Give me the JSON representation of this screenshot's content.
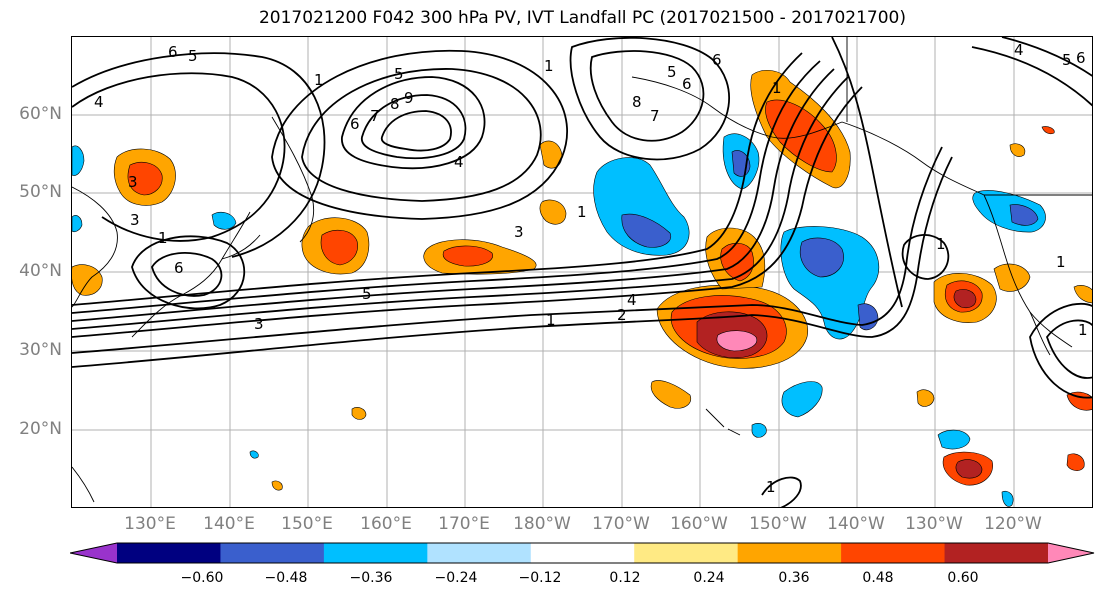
{
  "title": "2017021200 F042 300 hPa PV, IVT Landfall PC (2017021500 - 2017021700)",
  "lat_labels": [
    "60°N",
    "50°N",
    "40°N",
    "30°N",
    "20°N"
  ],
  "lon_labels": [
    "130°E",
    "140°E",
    "150°E",
    "160°E",
    "170°E",
    "180°W",
    "170°W",
    "160°W",
    "150°W",
    "140°W",
    "130°W",
    "120°W"
  ],
  "contour_labels": [
    "4",
    "6",
    "5",
    "1",
    "5",
    "6",
    "7",
    "8",
    "9",
    "4",
    "3",
    "1",
    "8",
    "7",
    "6",
    "6",
    "5",
    "3",
    "4",
    "2",
    "1",
    "3",
    "6",
    "3",
    "5",
    "1",
    "1",
    "1",
    "1",
    "1",
    "1",
    "1",
    "4",
    "5",
    "6"
  ],
  "colorbar": {
    "ticks": [
      "−0.60",
      "−0.48",
      "−0.36",
      "−0.24",
      "−0.12",
      "0.12",
      "0.24",
      "0.36",
      "0.48",
      "0.60"
    ],
    "colors": [
      "#9933cc",
      "#000080",
      "#3a5fcd",
      "#00bfff",
      "#b0e2ff",
      "#ffffff",
      "#ffea84",
      "#ffa500",
      "#ff4500",
      "#b22222",
      "#ff88b8"
    ]
  },
  "colors": {
    "coast": "#000000",
    "contour": "#000000",
    "grid": "#b0b0b0",
    "axis_label": "#808080"
  }
}
